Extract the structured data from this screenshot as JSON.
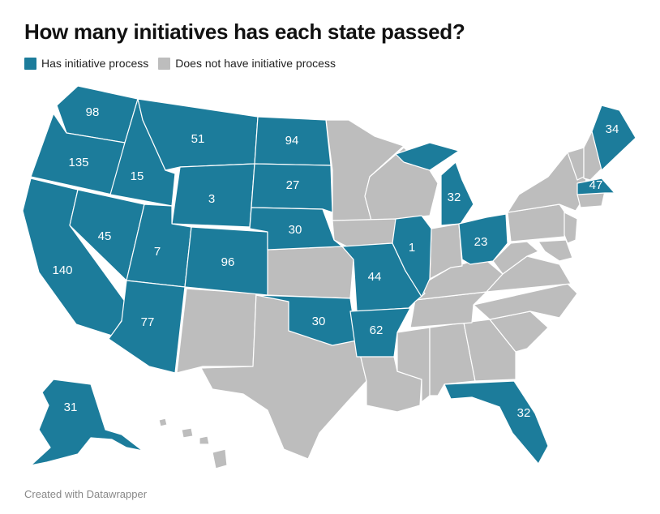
{
  "title": "How many initiatives has each state passed?",
  "legend": [
    {
      "label": "Has initiative process",
      "color": "#1c7c9b"
    },
    {
      "label": "Does not have initiative process",
      "color": "#bdbdbd"
    }
  ],
  "colors": {
    "initiative": "#1c7c9b",
    "no_initiative": "#bdbdbd",
    "border": "#ffffff"
  },
  "states": [
    {
      "state": "Washington",
      "value": "98",
      "initiative": true
    },
    {
      "state": "Oregon",
      "value": "135",
      "initiative": true
    },
    {
      "state": "California",
      "value": "140",
      "initiative": true
    },
    {
      "state": "Idaho",
      "value": "15",
      "initiative": true
    },
    {
      "state": "Nevada",
      "value": "45",
      "initiative": true
    },
    {
      "state": "Montana",
      "value": "51",
      "initiative": true
    },
    {
      "state": "Wyoming",
      "value": "3",
      "initiative": true
    },
    {
      "state": "Utah",
      "value": "7",
      "initiative": true
    },
    {
      "state": "Arizona",
      "value": "77",
      "initiative": true
    },
    {
      "state": "Colorado",
      "value": "96",
      "initiative": true
    },
    {
      "state": "North Dakota",
      "value": "94",
      "initiative": true
    },
    {
      "state": "South Dakota",
      "value": "27",
      "initiative": true
    },
    {
      "state": "Nebraska",
      "value": "30",
      "initiative": true
    },
    {
      "state": "Oklahoma",
      "value": "30",
      "initiative": true
    },
    {
      "state": "Missouri",
      "value": "44",
      "initiative": true
    },
    {
      "state": "Arkansas",
      "value": "62",
      "initiative": true
    },
    {
      "state": "Illinois",
      "value": "1",
      "initiative": true
    },
    {
      "state": "Michigan",
      "value": "32",
      "initiative": true
    },
    {
      "state": "Ohio",
      "value": "23",
      "initiative": true
    },
    {
      "state": "Maine",
      "value": "34",
      "initiative": true
    },
    {
      "state": "Massachusetts",
      "value": "47",
      "initiative": true
    },
    {
      "state": "Florida",
      "value": "32",
      "initiative": true
    },
    {
      "state": "Alaska",
      "value": "31",
      "initiative": true
    }
  ],
  "credit": "Created with Datawrapper"
}
